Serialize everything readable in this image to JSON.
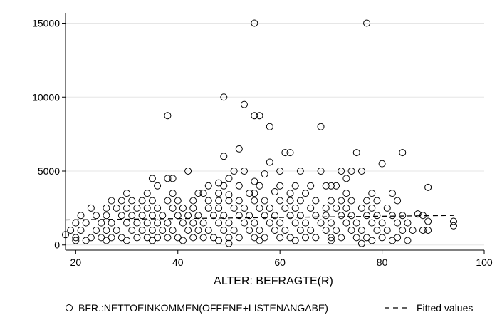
{
  "chart_data": {
    "type": "scatter",
    "xlabel": "ALTER: BEFRAGTE(R)",
    "ylabel": "",
    "xlim": [
      18,
      100
    ],
    "ylim": [
      -350,
      15700
    ],
    "x_ticks": [
      20,
      40,
      60,
      80,
      100
    ],
    "x_tick_labels": [
      "20",
      "40",
      "60",
      "80",
      "100"
    ],
    "y_ticks": [
      0,
      5000,
      10000,
      15000
    ],
    "y_tick_labels": [
      "0",
      "5000",
      "10000",
      "15000"
    ],
    "grid": "horizontal",
    "legend_position": "bottom",
    "series": [
      {
        "name": "BFR.:NETTOEINKOMMEN(OFFENE+LISTENANGABE)",
        "marker": "hollow-circle",
        "color": "#000000",
        "points": [
          [
            55,
            15000
          ],
          [
            77,
            15000
          ],
          [
            49,
            10000
          ],
          [
            53,
            9500
          ],
          [
            38,
            8750
          ],
          [
            55,
            8750
          ],
          [
            56,
            8750
          ],
          [
            58,
            8000
          ],
          [
            68,
            8000
          ],
          [
            52,
            6500
          ],
          [
            49,
            6000
          ],
          [
            61,
            6250
          ],
          [
            62,
            6250
          ],
          [
            75,
            6250
          ],
          [
            84,
            6250
          ],
          [
            58,
            5600
          ],
          [
            80,
            5500
          ],
          [
            42,
            5000
          ],
          [
            51,
            5000
          ],
          [
            53,
            5000
          ],
          [
            60,
            5000
          ],
          [
            64,
            5000
          ],
          [
            68,
            5000
          ],
          [
            72,
            5000
          ],
          [
            74,
            5000
          ],
          [
            76,
            5000
          ],
          [
            35,
            4500
          ],
          [
            38,
            4500
          ],
          [
            39,
            4500
          ],
          [
            50,
            4500
          ],
          [
            57,
            4800
          ],
          [
            73,
            4500
          ],
          [
            48,
            4200
          ],
          [
            55,
            4300
          ],
          [
            36,
            4000
          ],
          [
            46,
            4000
          ],
          [
            49,
            4000
          ],
          [
            52,
            4000
          ],
          [
            56,
            4000
          ],
          [
            60,
            4000
          ],
          [
            63,
            4000
          ],
          [
            66,
            4000
          ],
          [
            69,
            4000
          ],
          [
            70,
            4000
          ],
          [
            71,
            4000
          ],
          [
            89,
            3900
          ],
          [
            30,
            3500
          ],
          [
            34,
            3500
          ],
          [
            39,
            3500
          ],
          [
            44,
            3500
          ],
          [
            45,
            3500
          ],
          [
            48,
            3500
          ],
          [
            50,
            3400
          ],
          [
            54,
            3500
          ],
          [
            55,
            3500
          ],
          [
            59,
            3600
          ],
          [
            62,
            3500
          ],
          [
            65,
            3500
          ],
          [
            73,
            3500
          ],
          [
            78,
            3500
          ],
          [
            82,
            3500
          ],
          [
            27,
            3000
          ],
          [
            29,
            3000
          ],
          [
            31,
            3000
          ],
          [
            33,
            3000
          ],
          [
            35,
            3000
          ],
          [
            38,
            3000
          ],
          [
            40,
            3000
          ],
          [
            43,
            3000
          ],
          [
            46,
            3000
          ],
          [
            48,
            3000
          ],
          [
            50,
            3000
          ],
          [
            52,
            3000
          ],
          [
            55,
            3000
          ],
          [
            57,
            3000
          ],
          [
            60,
            3000
          ],
          [
            62,
            3000
          ],
          [
            64,
            3000
          ],
          [
            67,
            3000
          ],
          [
            70,
            3000
          ],
          [
            72,
            3000
          ],
          [
            74,
            3000
          ],
          [
            77,
            3000
          ],
          [
            79,
            3000
          ],
          [
            83,
            3000
          ],
          [
            23,
            2500
          ],
          [
            26,
            2500
          ],
          [
            28,
            2500
          ],
          [
            30,
            2500
          ],
          [
            32,
            2500
          ],
          [
            34,
            2500
          ],
          [
            36,
            2500
          ],
          [
            39,
            2500
          ],
          [
            41,
            2500
          ],
          [
            43,
            2500
          ],
          [
            46,
            2500
          ],
          [
            48,
            2500
          ],
          [
            51,
            2500
          ],
          [
            53,
            2500
          ],
          [
            56,
            2500
          ],
          [
            58,
            2500
          ],
          [
            61,
            2500
          ],
          [
            63,
            2500
          ],
          [
            66,
            2500
          ],
          [
            69,
            2500
          ],
          [
            71,
            2500
          ],
          [
            73,
            2500
          ],
          [
            76,
            2500
          ],
          [
            78,
            2500
          ],
          [
            81,
            2500
          ],
          [
            21,
            2000
          ],
          [
            24,
            2000
          ],
          [
            26,
            2000
          ],
          [
            29,
            2000
          ],
          [
            31,
            2000
          ],
          [
            33,
            2000
          ],
          [
            35,
            2000
          ],
          [
            37,
            2000
          ],
          [
            40,
            2000
          ],
          [
            42,
            2000
          ],
          [
            44,
            2000
          ],
          [
            47,
            2000
          ],
          [
            49,
            2000
          ],
          [
            52,
            2000
          ],
          [
            54,
            2000
          ],
          [
            57,
            2000
          ],
          [
            59,
            2000
          ],
          [
            62,
            2000
          ],
          [
            64,
            2000
          ],
          [
            67,
            2000
          ],
          [
            69,
            2000
          ],
          [
            72,
            2000
          ],
          [
            74,
            2000
          ],
          [
            77,
            2000
          ],
          [
            79,
            2000
          ],
          [
            82,
            2000
          ],
          [
            84,
            2000
          ],
          [
            87,
            2100
          ],
          [
            88,
            2000
          ],
          [
            20,
            1500
          ],
          [
            22,
            1500
          ],
          [
            25,
            1500
          ],
          [
            27,
            1500
          ],
          [
            30,
            1500
          ],
          [
            32,
            1500
          ],
          [
            34,
            1500
          ],
          [
            36,
            1500
          ],
          [
            38,
            1500
          ],
          [
            41,
            1500
          ],
          [
            43,
            1500
          ],
          [
            45,
            1500
          ],
          [
            48,
            1500
          ],
          [
            50,
            1500
          ],
          [
            53,
            1500
          ],
          [
            55,
            1500
          ],
          [
            58,
            1500
          ],
          [
            60,
            1500
          ],
          [
            63,
            1500
          ],
          [
            65,
            1500
          ],
          [
            68,
            1500
          ],
          [
            70,
            1500
          ],
          [
            73,
            1500
          ],
          [
            75,
            1500
          ],
          [
            78,
            1500
          ],
          [
            80,
            1500
          ],
          [
            83,
            1500
          ],
          [
            85,
            1500
          ],
          [
            89,
            1600
          ],
          [
            94,
            1600
          ],
          [
            19,
            1000
          ],
          [
            21,
            1000
          ],
          [
            24,
            1000
          ],
          [
            26,
            1000
          ],
          [
            28,
            1000
          ],
          [
            31,
            1000
          ],
          [
            33,
            1000
          ],
          [
            35,
            1000
          ],
          [
            37,
            1000
          ],
          [
            39,
            1000
          ],
          [
            42,
            1000
          ],
          [
            44,
            1000
          ],
          [
            46,
            1000
          ],
          [
            49,
            1000
          ],
          [
            51,
            1000
          ],
          [
            54,
            1000
          ],
          [
            56,
            1000
          ],
          [
            59,
            1000
          ],
          [
            61,
            1000
          ],
          [
            64,
            1000
          ],
          [
            66,
            1000
          ],
          [
            69,
            1000
          ],
          [
            71,
            1000
          ],
          [
            74,
            1000
          ],
          [
            76,
            1000
          ],
          [
            79,
            1000
          ],
          [
            81,
            1000
          ],
          [
            84,
            1000
          ],
          [
            86,
            1000
          ],
          [
            88,
            1000
          ],
          [
            89,
            1000
          ],
          [
            94,
            1300
          ],
          [
            18,
            700
          ],
          [
            20,
            500
          ],
          [
            23,
            500
          ],
          [
            25,
            500
          ],
          [
            27,
            500
          ],
          [
            29,
            500
          ],
          [
            32,
            500
          ],
          [
            34,
            500
          ],
          [
            36,
            500
          ],
          [
            38,
            500
          ],
          [
            40,
            500
          ],
          [
            43,
            500
          ],
          [
            45,
            500
          ],
          [
            47,
            500
          ],
          [
            50,
            500
          ],
          [
            52,
            500
          ],
          [
            55,
            500
          ],
          [
            57,
            500
          ],
          [
            60,
            500
          ],
          [
            62,
            500
          ],
          [
            65,
            500
          ],
          [
            67,
            500
          ],
          [
            70,
            500
          ],
          [
            72,
            500
          ],
          [
            75,
            500
          ],
          [
            77,
            500
          ],
          [
            80,
            500
          ],
          [
            83,
            500
          ],
          [
            20,
            300
          ],
          [
            22,
            300
          ],
          [
            26,
            300
          ],
          [
            30,
            300
          ],
          [
            35,
            300
          ],
          [
            41,
            300
          ],
          [
            48,
            300
          ],
          [
            56,
            300
          ],
          [
            63,
            300
          ],
          [
            70,
            300
          ],
          [
            78,
            300
          ],
          [
            82,
            300
          ],
          [
            85,
            300
          ],
          [
            50,
            100
          ],
          [
            76,
            100
          ]
        ]
      },
      {
        "name": "Fitted values",
        "style": "dashed-line",
        "color": "#000000",
        "x": [
          18,
          94
        ],
        "y": [
          1700,
          2000
        ]
      }
    ]
  }
}
